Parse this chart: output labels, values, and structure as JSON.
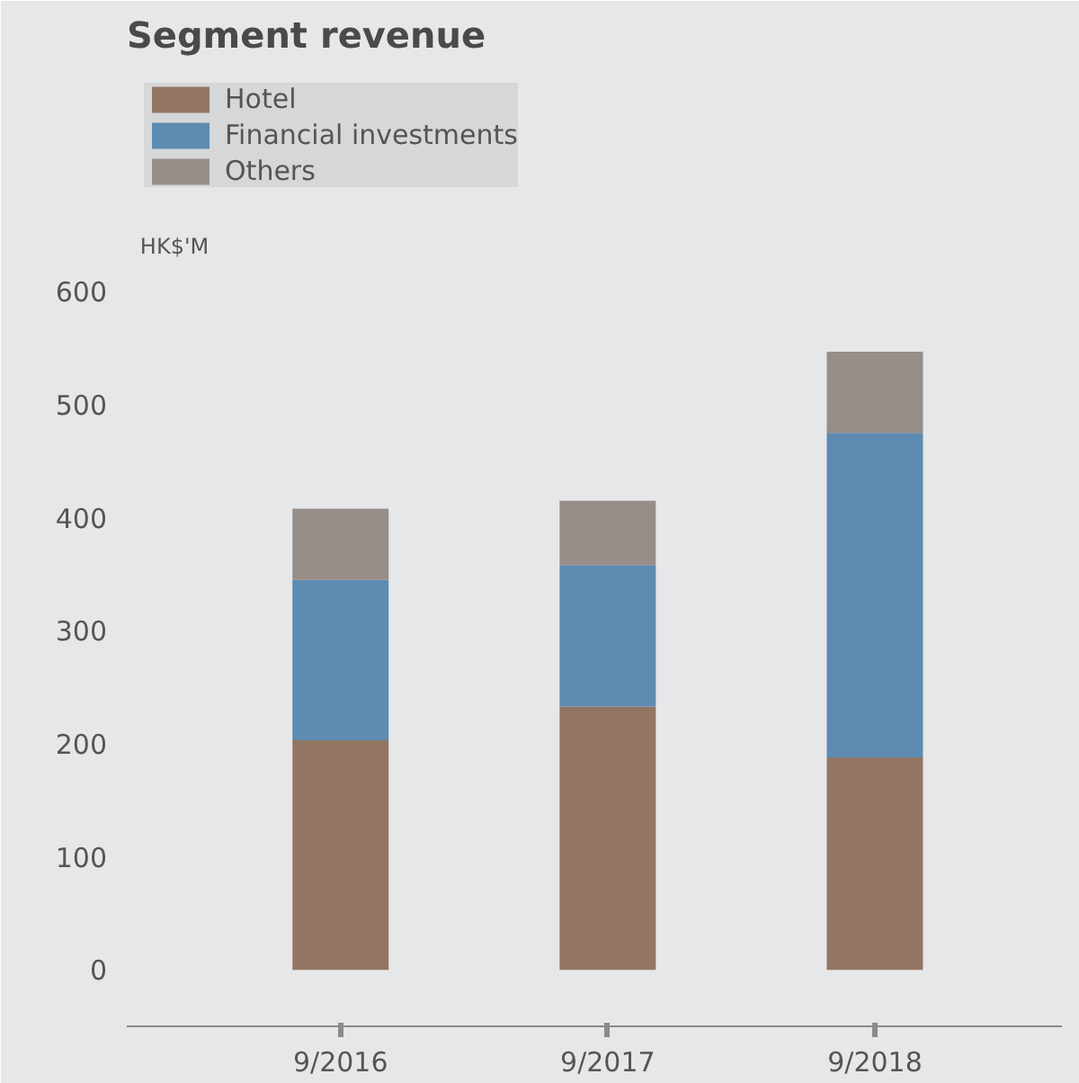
{
  "chart_data": {
    "type": "bar",
    "title": "Segment revenue",
    "ylabel": "HK$'M",
    "stacked": true,
    "categories": [
      "9/2016",
      "9/2017",
      "9/2018"
    ],
    "series": [
      {
        "name": "Hotel",
        "color": "#927662",
        "values": [
          203,
          233,
          188
        ]
      },
      {
        "name": "Financial investments",
        "color": "#5e8bb1",
        "values": [
          142,
          125,
          287
        ]
      },
      {
        "name": "Others",
        "color": "#978d89",
        "values": [
          63,
          57,
          72
        ]
      }
    ],
    "ylim": [
      -50,
      800
    ],
    "yticks": [
      0,
      100,
      200,
      300,
      400,
      500,
      600
    ],
    "legend": "top left"
  }
}
